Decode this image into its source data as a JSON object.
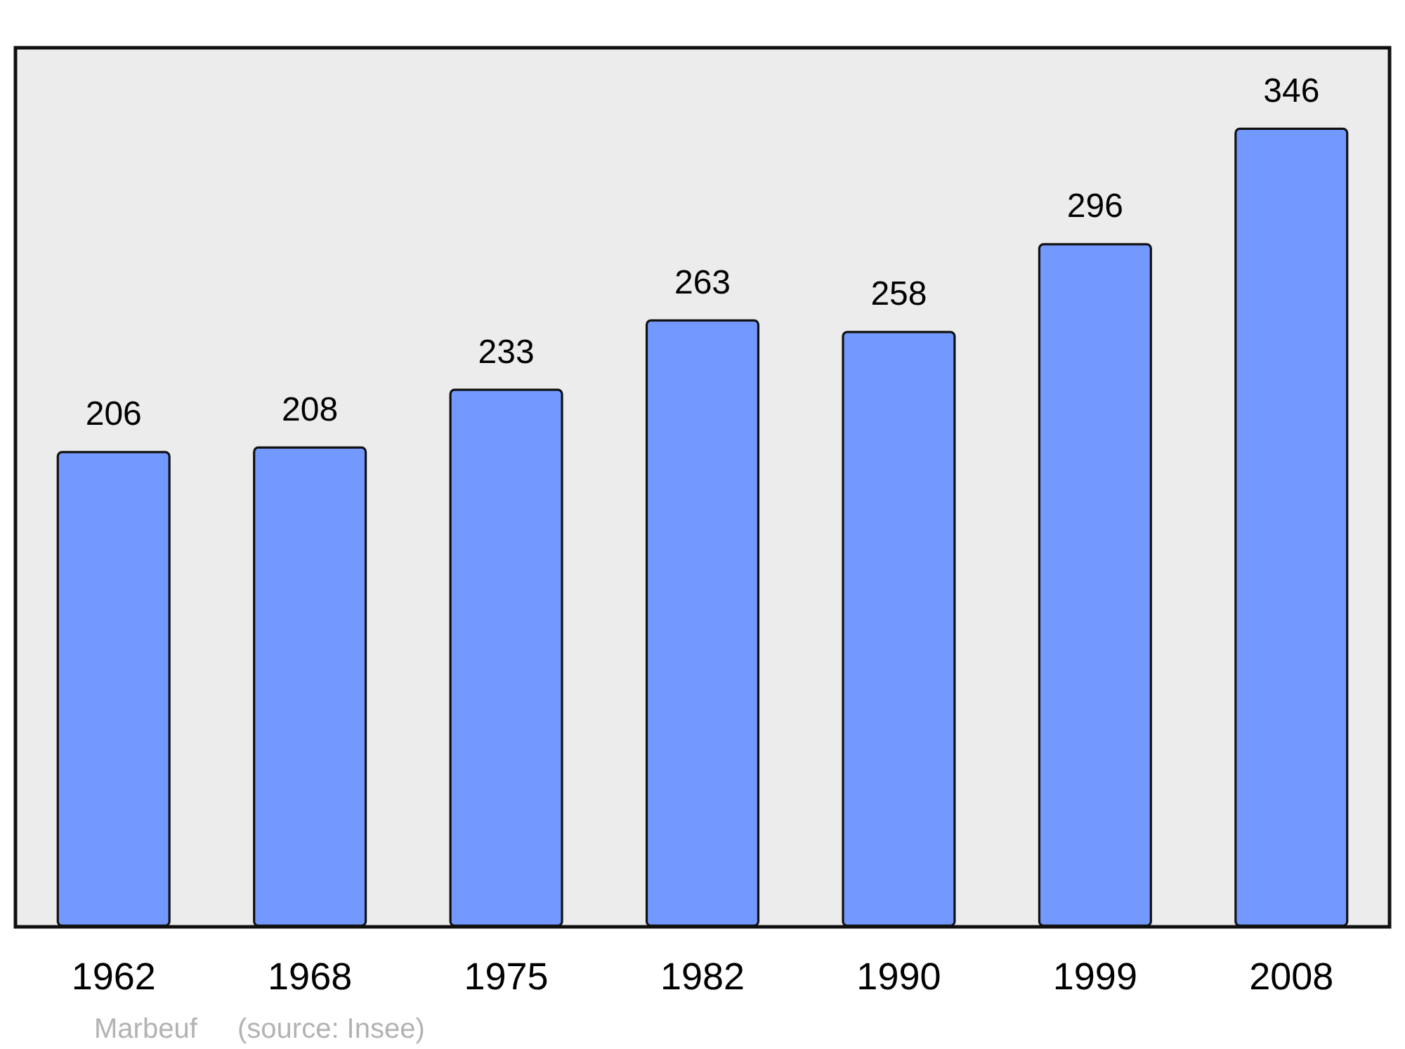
{
  "chart_data": {
    "type": "bar",
    "title": "Marbeuf",
    "annotations": [
      "(source: Insee)"
    ],
    "categories": [
      "1962",
      "1968",
      "1975",
      "1982",
      "1990",
      "1999",
      "2008"
    ],
    "values": [
      206,
      208,
      233,
      263,
      258,
      296,
      346
    ],
    "color": "#7399ff",
    "data_labels": true,
    "grid": false
  }
}
